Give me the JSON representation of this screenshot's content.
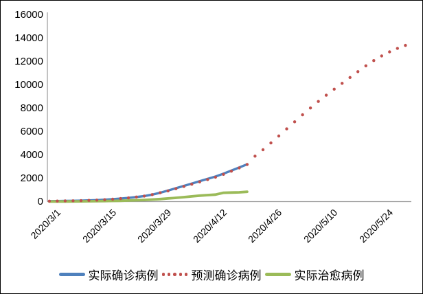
{
  "chart_data": {
    "type": "line",
    "title": "",
    "x_unit": "daily categories; day index 0 = 2020/3/1",
    "x_total_days": 92,
    "x_tick_labels": [
      "2020/3/1",
      "2020/3/15",
      "2020/3/29",
      "2020/4/12",
      "2020/4/26",
      "2020/5/10",
      "2020/5/24"
    ],
    "x_tick_day_indices": [
      0,
      14,
      28,
      42,
      56,
      70,
      84
    ],
    "y_tick_labels": [
      "0",
      "2000",
      "4000",
      "6000",
      "8000",
      "10000",
      "12000",
      "14000",
      "16000"
    ],
    "ylim": [
      0,
      16000
    ],
    "y_tick_step": 2000,
    "grid": false,
    "legend_position": "bottom",
    "axis_color": "#9a9a9a",
    "series": [
      {
        "name": "实际确诊病例",
        "style": "solid",
        "color": "#4F81BD",
        "stroke_width": 3.4,
        "days": [
          0,
          2,
          4,
          6,
          8,
          10,
          12,
          14,
          16,
          18,
          20,
          22,
          24,
          26,
          28,
          30,
          32,
          34,
          36,
          38,
          40,
          42,
          44,
          46,
          48,
          50
        ],
        "values": [
          40,
          47,
          56,
          68,
          84,
          104,
          130,
          163,
          205,
          258,
          320,
          395,
          480,
          600,
          760,
          950,
          1150,
          1350,
          1550,
          1750,
          1950,
          2150,
          2400,
          2660,
          2930,
          3200
        ]
      },
      {
        "name": "预测确诊病例",
        "style": "dotted",
        "color": "#C0504D",
        "dot_radius": 2.2,
        "days": [
          0,
          2,
          4,
          6,
          8,
          10,
          12,
          14,
          16,
          18,
          20,
          22,
          24,
          26,
          28,
          30,
          32,
          34,
          36,
          38,
          40,
          42,
          44,
          46,
          48,
          50,
          52,
          54,
          56,
          58,
          60,
          62,
          64,
          66,
          68,
          70,
          72,
          74,
          76,
          78,
          80,
          82,
          84,
          86,
          88,
          90
        ],
        "values": [
          40,
          47,
          56,
          68,
          84,
          104,
          130,
          163,
          205,
          258,
          320,
          395,
          480,
          600,
          760,
          920,
          1110,
          1300,
          1490,
          1690,
          1890,
          2090,
          2340,
          2610,
          2890,
          3190,
          3900,
          4450,
          5030,
          5630,
          6240,
          6850,
          7450,
          8030,
          8590,
          9130,
          9650,
          10150,
          10650,
          11150,
          11650,
          12100,
          12500,
          12850,
          13150,
          13400
        ]
      },
      {
        "name": "实际治愈病例",
        "style": "solid",
        "color": "#9BBB59",
        "stroke_width": 3.8,
        "days": [
          0,
          2,
          4,
          6,
          8,
          10,
          12,
          14,
          16,
          18,
          20,
          22,
          24,
          26,
          28,
          30,
          32,
          34,
          36,
          38,
          40,
          42,
          44,
          46,
          48,
          50
        ],
        "values": [
          8,
          10,
          13,
          17,
          22,
          28,
          36,
          46,
          58,
          73,
          92,
          115,
          143,
          178,
          220,
          270,
          325,
          385,
          448,
          510,
          560,
          600,
          760,
          780,
          795,
          840
        ]
      }
    ]
  }
}
